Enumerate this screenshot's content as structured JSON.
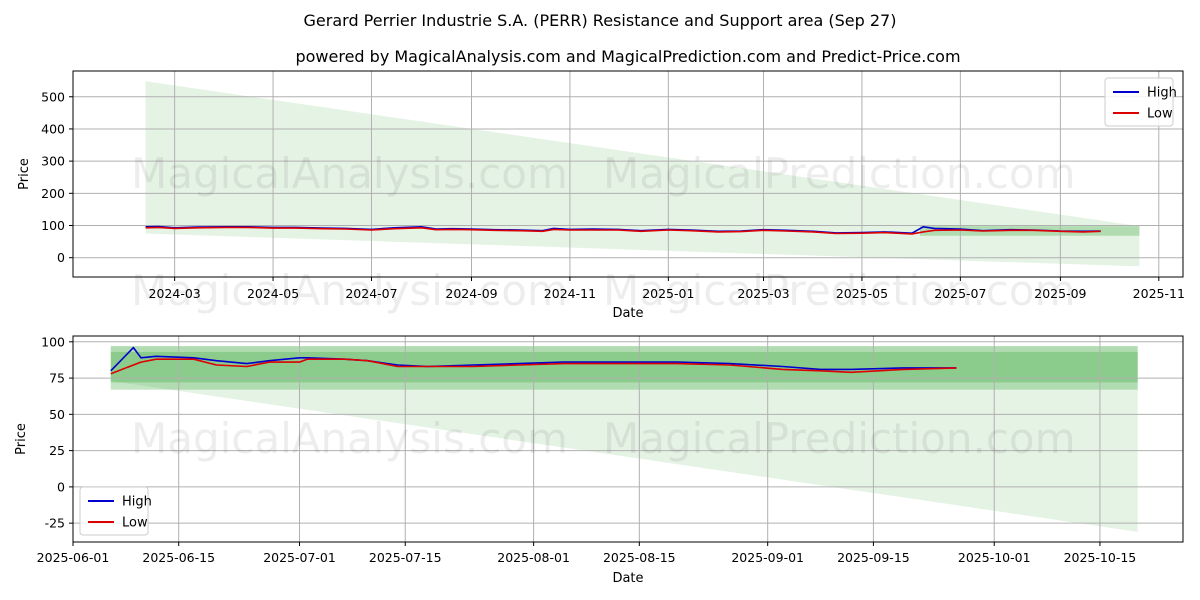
{
  "title": "Gerard Perrier Industrie S.A. (PERR) Resistance and Support area (Sep 27)",
  "subtitle": "powered by MagicalAnalysis.com and MagicalPrediction.com and Predict-Price.com",
  "watermarks": [
    "MagicalAnalysis.com",
    "MagicalPrediction.com"
  ],
  "colors": {
    "high": "#0000cc",
    "low": "#dd0000",
    "band": "#2ca02c",
    "grid": "#b0b0b0"
  },
  "chart_data": [
    {
      "type": "line",
      "name": "full-history",
      "xlabel": "Date",
      "ylabel": "Price",
      "xlim": [
        "2023-12-29",
        "2025-11-16"
      ],
      "ylim": [
        -60,
        580
      ],
      "xticks": [
        "2024-03",
        "2024-05",
        "2024-07",
        "2024-09",
        "2024-11",
        "2025-01",
        "2025-03",
        "2025-05",
        "2025-07",
        "2025-09",
        "2025-11"
      ],
      "xtick_dates": [
        "2024-03-01",
        "2024-05-01",
        "2024-07-01",
        "2024-09-01",
        "2024-11-01",
        "2025-01-01",
        "2025-03-01",
        "2025-05-01",
        "2025-07-01",
        "2025-09-01",
        "2025-11-01"
      ],
      "yticks": [
        0,
        100,
        200,
        300,
        400,
        500
      ],
      "legend": {
        "position": "top-right",
        "entries": [
          "High",
          "Low"
        ]
      },
      "projection_cone": {
        "start": "2024-02-12",
        "end": "2025-10-20",
        "start_upper": 548,
        "start_lower": 75,
        "end_upper": 98,
        "end_lower": -27
      },
      "bands": [
        {
          "start": "2025-06-06",
          "end": "2025-10-20",
          "upper": 98,
          "lower": 68
        }
      ],
      "series": [
        {
          "name": "High",
          "dates": [
            "2024-02-12",
            "2024-02-20",
            "2024-03-01",
            "2024-03-15",
            "2024-04-01",
            "2024-04-15",
            "2024-05-01",
            "2024-05-15",
            "2024-06-01",
            "2024-06-15",
            "2024-07-01",
            "2024-07-15",
            "2024-08-01",
            "2024-08-10",
            "2024-08-20",
            "2024-09-01",
            "2024-09-15",
            "2024-10-01",
            "2024-10-15",
            "2024-10-22",
            "2024-11-01",
            "2024-11-15",
            "2024-12-01",
            "2024-12-15",
            "2025-01-01",
            "2025-01-15",
            "2025-02-01",
            "2025-02-15",
            "2025-03-01",
            "2025-03-15",
            "2025-04-01",
            "2025-04-15",
            "2025-05-01",
            "2025-05-15",
            "2025-06-01",
            "2025-06-08",
            "2025-06-15",
            "2025-07-01",
            "2025-07-15",
            "2025-08-01",
            "2025-08-15",
            "2025-09-01",
            "2025-09-15",
            "2025-09-26"
          ],
          "values": [
            96,
            97,
            93,
            95,
            96,
            96,
            94,
            94,
            92,
            91,
            88,
            93,
            96,
            89,
            90,
            89,
            87,
            86,
            84,
            91,
            88,
            89,
            88,
            84,
            88,
            86,
            82,
            83,
            87,
            85,
            82,
            77,
            78,
            80,
            76,
            96,
            91,
            89,
            84,
            87,
            86,
            83,
            82,
            83
          ]
        },
        {
          "name": "Low",
          "dates": [
            "2024-02-12",
            "2024-02-20",
            "2024-03-01",
            "2024-03-15",
            "2024-04-01",
            "2024-04-15",
            "2024-05-01",
            "2024-05-15",
            "2024-06-01",
            "2024-06-15",
            "2024-07-01",
            "2024-07-15",
            "2024-08-01",
            "2024-08-10",
            "2024-08-20",
            "2024-09-01",
            "2024-09-15",
            "2024-10-01",
            "2024-10-15",
            "2024-10-22",
            "2024-11-01",
            "2024-11-15",
            "2024-12-01",
            "2024-12-15",
            "2025-01-01",
            "2025-01-15",
            "2025-02-01",
            "2025-02-15",
            "2025-03-01",
            "2025-03-15",
            "2025-04-01",
            "2025-04-15",
            "2025-05-01",
            "2025-05-15",
            "2025-06-01",
            "2025-06-08",
            "2025-06-15",
            "2025-07-01",
            "2025-07-15",
            "2025-08-01",
            "2025-08-15",
            "2025-09-01",
            "2025-09-15",
            "2025-09-26"
          ],
          "values": [
            93,
            94,
            91,
            93,
            94,
            94,
            92,
            92,
            90,
            89,
            86,
            90,
            93,
            87,
            88,
            87,
            85,
            84,
            82,
            88,
            86,
            86,
            86,
            82,
            86,
            84,
            80,
            81,
            85,
            83,
            80,
            75,
            76,
            78,
            74,
            80,
            85,
            86,
            83,
            85,
            85,
            82,
            80,
            82
          ]
        }
      ]
    },
    {
      "type": "line",
      "name": "recent-zoom",
      "xlabel": "Date",
      "ylabel": "Price",
      "xlim": [
        "2025-06-01",
        "2025-10-26"
      ],
      "ylim": [
        -38,
        104
      ],
      "xticks": [
        "2025-06-01",
        "2025-06-15",
        "2025-07-01",
        "2025-07-15",
        "2025-08-01",
        "2025-08-15",
        "2025-09-01",
        "2025-09-15",
        "2025-10-01",
        "2025-10-15"
      ],
      "xtick_dates": [
        "2025-06-01",
        "2025-06-15",
        "2025-07-01",
        "2025-07-15",
        "2025-08-01",
        "2025-08-15",
        "2025-09-01",
        "2025-09-15",
        "2025-10-01",
        "2025-10-15"
      ],
      "yticks": [
        -25,
        0,
        25,
        50,
        75,
        100
      ],
      "legend": {
        "position": "bottom-left",
        "entries": [
          "High",
          "Low"
        ]
      },
      "projection_cone": {
        "start": "2025-06-06",
        "end": "2025-10-20",
        "start_upper": 97,
        "start_lower": 73,
        "end_upper": 97,
        "end_lower": -31
      },
      "bands": [
        {
          "start": "2025-06-06",
          "end": "2025-10-20",
          "upper": 97,
          "lower": 72
        },
        {
          "start": "2025-06-06",
          "end": "2025-10-20",
          "upper": 93,
          "lower": 77
        },
        {
          "start": "2025-06-06",
          "end": "2025-10-20",
          "upper": 77,
          "lower": 67
        }
      ],
      "series": [
        {
          "name": "High",
          "dates": [
            "2025-06-06",
            "2025-06-09",
            "2025-06-10",
            "2025-06-12",
            "2025-06-17",
            "2025-06-20",
            "2025-06-24",
            "2025-06-27",
            "2025-07-01",
            "2025-07-02",
            "2025-07-07",
            "2025-07-10",
            "2025-07-14",
            "2025-07-18",
            "2025-07-24",
            "2025-07-30",
            "2025-08-05",
            "2025-08-12",
            "2025-08-20",
            "2025-08-27",
            "2025-09-03",
            "2025-09-08",
            "2025-09-12",
            "2025-09-19",
            "2025-09-26"
          ],
          "values": [
            80,
            96,
            89,
            90,
            89,
            87,
            85,
            87,
            89,
            89,
            88,
            87,
            84,
            83,
            84,
            85,
            86,
            86,
            86,
            85,
            83,
            81,
            81,
            82,
            82
          ]
        },
        {
          "name": "Low",
          "dates": [
            "2025-06-06",
            "2025-06-09",
            "2025-06-10",
            "2025-06-12",
            "2025-06-17",
            "2025-06-20",
            "2025-06-24",
            "2025-06-27",
            "2025-07-01",
            "2025-07-02",
            "2025-07-07",
            "2025-07-10",
            "2025-07-14",
            "2025-07-18",
            "2025-07-24",
            "2025-07-30",
            "2025-08-05",
            "2025-08-12",
            "2025-08-20",
            "2025-08-27",
            "2025-09-03",
            "2025-09-08",
            "2025-09-12",
            "2025-09-19",
            "2025-09-26"
          ],
          "values": [
            78,
            84,
            86,
            88,
            88,
            84,
            83,
            86,
            86,
            88,
            88,
            87,
            83,
            83,
            83,
            84,
            85,
            85,
            85,
            84,
            81,
            80,
            79,
            81,
            82
          ]
        }
      ]
    }
  ]
}
